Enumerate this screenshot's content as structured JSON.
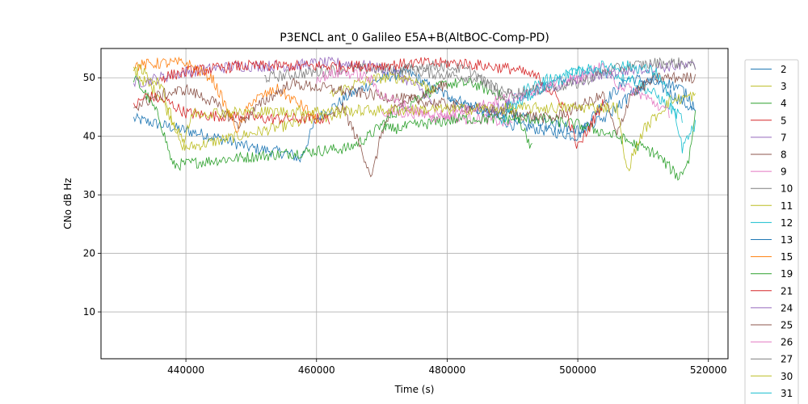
{
  "chart_data": {
    "type": "line",
    "title": "P3ENCL ant_0 Galileo E5A+B(AltBOC-Comp-PD)",
    "xlabel": "Time (s)",
    "ylabel": "CNo dB Hz",
    "xlim": [
      427000,
      523000
    ],
    "ylim": [
      2,
      55
    ],
    "xticks": [
      440000,
      460000,
      480000,
      500000,
      520000
    ],
    "xtick_labels": [
      "440000",
      "460000",
      "480000",
      "500000",
      "520000"
    ],
    "yticks": [
      10,
      20,
      30,
      40,
      50
    ],
    "ytick_labels": [
      "10",
      "20",
      "30",
      "40",
      "50"
    ],
    "grid": true,
    "legend_position": "right-outside",
    "series": [
      {
        "name": "2",
        "color": "#1f77b4",
        "x": [
          432000,
          436000,
          440000,
          444000,
          450000,
          456000,
          457500,
          460000,
          465000,
          470000,
          474000,
          478000,
          482000,
          486000,
          490000,
          495000,
          500000,
          504000,
          508000,
          512000,
          516000,
          518000
        ],
        "y": [
          43,
          42,
          41,
          40,
          38,
          37,
          36,
          43,
          47,
          50,
          51,
          48,
          46,
          44,
          42,
          41,
          40,
          46,
          50,
          49,
          46,
          44
        ]
      },
      {
        "name": "3",
        "color": "#bcbd22",
        "x": [
          432000,
          436000,
          440000,
          444000,
          448000,
          452000,
          456000,
          460000,
          464000
        ],
        "y": [
          51,
          47,
          38,
          39,
          40,
          41,
          42,
          43,
          44
        ]
      },
      {
        "name": "4",
        "color": "#2ca02c",
        "x": [
          432000,
          434000,
          436000,
          438000,
          445000,
          455000,
          465000,
          468000,
          472000,
          476000,
          480000,
          484000,
          488000,
          491000,
          493000
        ],
        "y": [
          50,
          47,
          43,
          35,
          36,
          37,
          38,
          40,
          44,
          47,
          49,
          49,
          47,
          43,
          38
        ]
      },
      {
        "name": "5",
        "color": "#d62728",
        "x": [
          432000,
          434000,
          437000,
          440000,
          444000,
          448000,
          452000,
          458000,
          462000
        ],
        "y": [
          45,
          47,
          46,
          44,
          43.5,
          43.5,
          43,
          43,
          43
        ]
      },
      {
        "name": "7",
        "color": "#9467bd",
        "x": [
          432000,
          436000,
          440000,
          444000,
          448000,
          452000,
          456000,
          460000,
          464000,
          468000,
          472000,
          476000,
          478000
        ],
        "y": [
          49,
          50,
          51,
          51.5,
          52,
          52,
          52,
          52.5,
          52.5,
          52,
          51,
          48,
          45
        ]
      },
      {
        "name": "8",
        "color": "#8c564b",
        "x": [
          462000,
          464000,
          466000,
          467500,
          468500,
          470000,
          472000,
          476000,
          480000
        ],
        "y": [
          43,
          45,
          40,
          36,
          33,
          41,
          45,
          47,
          49
        ]
      },
      {
        "name": "9",
        "color": "#e377c2",
        "x": [
          470000,
          474000,
          478000,
          482000,
          486000,
          490000
        ],
        "y": [
          44,
          44,
          44,
          43,
          43,
          42
        ]
      },
      {
        "name": "10",
        "color": "#7f7f7f",
        "x": [
          452000,
          456000,
          460000,
          464000,
          468000,
          472000,
          476000,
          480000,
          484000,
          488000,
          490000
        ],
        "y": [
          50,
          50.5,
          51,
          51.5,
          51.5,
          51.5,
          51,
          50.5,
          50,
          48,
          47
        ]
      },
      {
        "name": "11",
        "color": "#bcbd22",
        "x": [
          462000,
          466000,
          470000,
          474000,
          478000
        ],
        "y": [
          47,
          49,
          50,
          50,
          48
        ]
      },
      {
        "name": "12",
        "color": "#17becf",
        "x": [
          489000,
          492000,
          496000,
          500000,
          504000,
          508000,
          512000,
          516000
        ],
        "y": [
          45,
          48,
          50,
          51,
          51,
          50,
          47,
          43
        ]
      },
      {
        "name": "13",
        "color": "#1f77b4",
        "x": [
          480000,
          484000,
          488000,
          492000,
          496000,
          500000,
          504000,
          508000,
          512000,
          516000,
          518000
        ],
        "y": [
          46,
          45,
          44,
          43,
          42,
          41,
          43,
          47,
          50,
          48,
          45
        ]
      },
      {
        "name": "15",
        "color": "#ff7f0e",
        "x": [
          432000,
          436000,
          440000,
          444000,
          447000,
          448000,
          450000,
          454000,
          458000,
          460000
        ],
        "y": [
          52,
          52.5,
          52.5,
          50,
          43,
          41,
          46,
          48,
          45,
          43
        ]
      },
      {
        "name": "19",
        "color": "#2ca02c",
        "x": [
          470000,
          476000,
          482000,
          488000,
          494000,
          500000,
          506000,
          512000,
          515500,
          517000,
          518000
        ],
        "y": [
          41,
          42,
          43,
          43,
          43,
          42,
          40,
          37,
          33,
          36,
          44
        ]
      },
      {
        "name": "21",
        "color": "#d62728",
        "x": [
          436000,
          440000,
          444000,
          448000,
          452000,
          460000,
          468000,
          476000,
          482000,
          486000,
          490000,
          494000,
          498000,
          500000,
          504000
        ],
        "y": [
          50,
          51,
          51.5,
          52,
          52,
          52,
          52,
          52.5,
          52.5,
          52,
          51.5,
          50,
          45,
          38,
          46
        ]
      },
      {
        "name": "24",
        "color": "#9467bd",
        "x": [
          486000,
          490000,
          494000,
          498000,
          502000,
          506000,
          510000,
          514000,
          518000
        ],
        "y": [
          44,
          46,
          48,
          49,
          50,
          51,
          51.5,
          52,
          52
        ]
      },
      {
        "name": "25",
        "color": "#8c564b",
        "x": [
          432000,
          436000,
          440000,
          444000,
          448000,
          452000,
          456000,
          496000,
          500000,
          504000,
          506000,
          508000,
          512000,
          516000,
          518000
        ],
        "y": [
          45,
          47,
          48,
          46,
          42,
          46,
          49,
          43,
          45,
          47,
          40,
          47,
          50,
          50,
          50
        ]
      },
      {
        "name": "26",
        "color": "#e377c2",
        "x": [
          460000,
          464000,
          468000,
          470000,
          474000,
          478000,
          500000,
          504000,
          506000,
          510000,
          514000
        ],
        "y": [
          50,
          51,
          50,
          47,
          45,
          43,
          50,
          52,
          49,
          47,
          44
        ]
      },
      {
        "name": "27",
        "color": "#7f7f7f",
        "x": [
          472000,
          476000,
          480000,
          484000,
          488000,
          500000,
          504000,
          508000,
          512000,
          516000,
          518000
        ],
        "y": [
          51,
          52,
          52,
          51,
          47,
          49,
          51,
          52,
          52.5,
          52.5,
          52
        ]
      },
      {
        "name": "30",
        "color": "#bcbd22",
        "x": [
          432000,
          436000,
          438000,
          439500,
          441000,
          506000,
          507500,
          510000,
          514000,
          518000
        ],
        "y": [
          52,
          49,
          43,
          38,
          44,
          45,
          34,
          41,
          46,
          47
        ]
      },
      {
        "name": "31",
        "color": "#17becf",
        "x": [
          488000,
          490000,
          494000,
          498000,
          500000,
          504000,
          508000,
          512000,
          514000,
          516000,
          518000
        ],
        "y": [
          42,
          45,
          48,
          50,
          51,
          52,
          52,
          51,
          47,
          38,
          42
        ]
      }
    ]
  }
}
